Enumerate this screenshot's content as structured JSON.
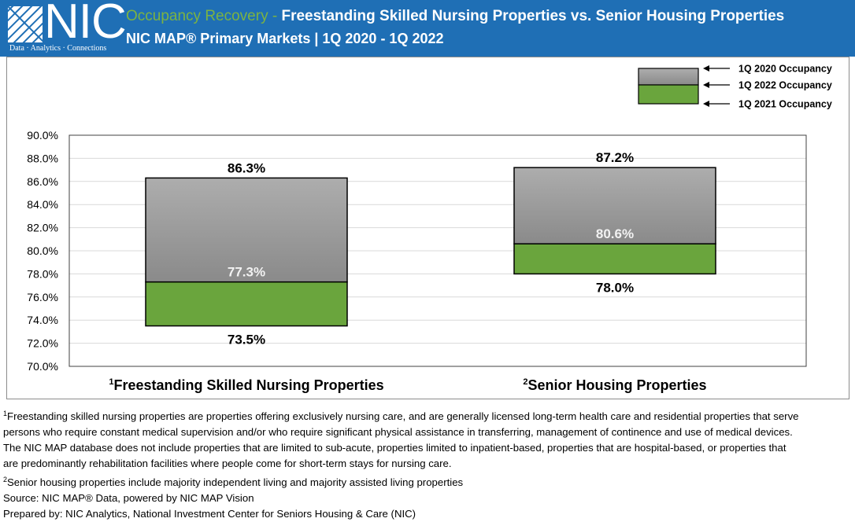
{
  "header": {
    "logo": {
      "text": "NIC",
      "tagline": "Data · Analytics · Connections"
    },
    "title_accent": "Occupancy Recovery -",
    "title_main": " Freestanding Skilled Nursing Properties vs. Senior Housing Properties",
    "subtitle": "NIC MAP® Primary Markets | 1Q 2020 - 1Q 2022"
  },
  "colors": {
    "header_bg": "#1f6fb5",
    "accent_green": "#7cb342",
    "box_gray_top": "#a6a6a6",
    "box_gray_bottom": "#8e8e8e",
    "box_green": "#6aa53d"
  },
  "chart_data": {
    "type": "floating-bar",
    "ylim": [
      70,
      90
    ],
    "yticks": [
      "70.0%",
      "72.0%",
      "74.0%",
      "76.0%",
      "78.0%",
      "80.0%",
      "82.0%",
      "84.0%",
      "86.0%",
      "88.0%",
      "90.0%"
    ],
    "grid": true,
    "categories": [
      {
        "sup": "1",
        "label": "Freestanding Skilled Nursing Properties"
      },
      {
        "sup": "2",
        "label": "Senior Housing Properties"
      }
    ],
    "series": [
      {
        "name": "1Q 2020 Occupancy",
        "values": [
          86.3,
          87.2
        ],
        "labels": [
          "86.3%",
          "87.2%"
        ]
      },
      {
        "name": "1Q 2022 Occupancy",
        "values": [
          77.3,
          80.6
        ],
        "labels": [
          "77.3%",
          "80.6%"
        ]
      },
      {
        "name": "1Q 2021 Occupancy",
        "values": [
          73.5,
          78.0
        ],
        "labels": [
          "73.5%",
          "78.0%"
        ]
      }
    ],
    "legend": {
      "position": "top-right",
      "entries": [
        "1Q 2020 Occupancy",
        "1Q 2022 Occupancy",
        "1Q 2021 Occupancy"
      ]
    }
  },
  "notes": {
    "sup1": "1",
    "line1": "Freestanding skilled nursing properties are properties offering exclusively nursing care, and are generally licensed long-term health care and residential properties that serve",
    "line2": "persons who require constant medical supervision and/or who require significant physical assistance in transferring, management of continence and use of medical devices.",
    "line3": "The NIC MAP database does not include properties that are limited to sub-acute, properties limited to inpatient-based, properties that are hospital-based, or properties that",
    "line4": "are predominantly rehabilitation facilities where people come for short-term stays for nursing care.",
    "sup2": "2",
    "line5": "Senior housing properties include majority independent living and majority assisted living properties",
    "source": "Source: NIC MAP® Data, powered by NIC MAP Vision",
    "prepared": "Prepared by: NIC Analytics, National Investment Center for Seniors Housing & Care (NIC)"
  }
}
